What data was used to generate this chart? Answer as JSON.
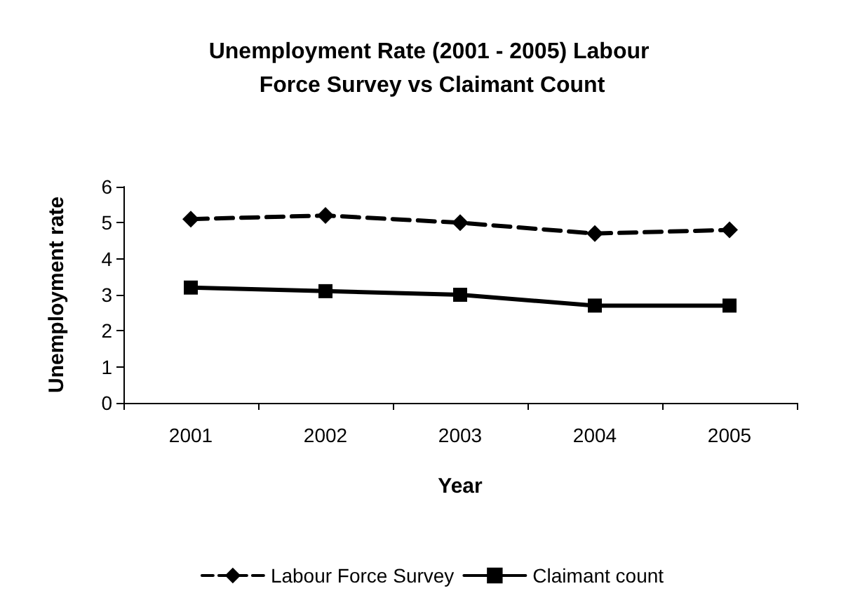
{
  "chart_data": {
    "type": "line",
    "title": "Unemployment Rate (2001 - 2005) Labour Force Survey vs Claimant Count",
    "xlabel": "Year",
    "ylabel": "Unemployment rate",
    "categories": [
      "2001",
      "2002",
      "2003",
      "2004",
      "2005"
    ],
    "series": [
      {
        "name": "Labour Force Survey",
        "color": "#000000",
        "values": [
          5.1,
          5.2,
          5.0,
          4.7,
          4.8
        ],
        "marker": "diamond",
        "line_style": "dashed"
      },
      {
        "name": "Claimant count",
        "color": "#000000",
        "values": [
          3.2,
          3.1,
          3.0,
          2.7,
          2.7
        ],
        "marker": "square",
        "line_style": "solid"
      }
    ],
    "ylim": [
      0,
      6
    ],
    "yticks": [
      0,
      1,
      2,
      3,
      4,
      5,
      6
    ],
    "grid": false,
    "legend": "bottom"
  }
}
